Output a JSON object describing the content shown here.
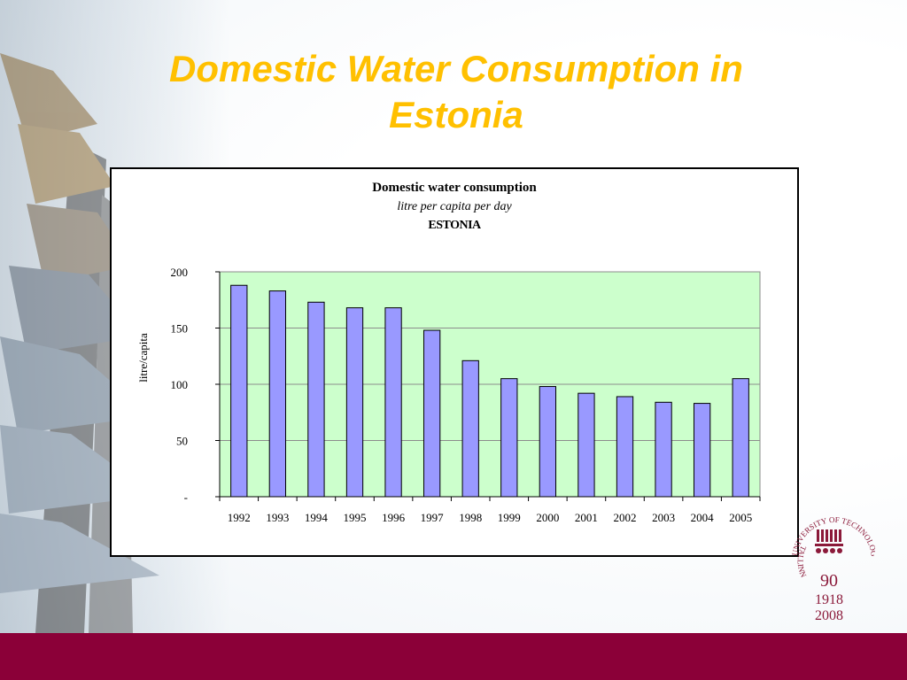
{
  "slide": {
    "title": "Domestic Water Consumption in Estonia"
  },
  "logo": {
    "arc_text": "UNIVERSITY OF TECHNOLOGY",
    "left_text": "TALLINN",
    "number": "90",
    "year_start": "1918",
    "year_end": "2008",
    "color": "#8b1a3a"
  },
  "colors": {
    "title": "#ffc000",
    "plot_bg": "#ccffcc",
    "bar_fill": "#9999ff",
    "footer": "#8b0038"
  },
  "chart_data": {
    "type": "bar",
    "title": "Domestic water consumption",
    "subtitle": "litre per capita per day",
    "subtitle2": "ESTONIA",
    "xlabel": "",
    "ylabel": "litre/capita",
    "categories": [
      "1992",
      "1993",
      "1994",
      "1995",
      "1996",
      "1997",
      "1998",
      "1999",
      "2000",
      "2001",
      "2002",
      "2003",
      "2004",
      "2005"
    ],
    "values": [
      188,
      183,
      173,
      168,
      168,
      148,
      121,
      105,
      98,
      92,
      89,
      84,
      83,
      105
    ],
    "ylim": [
      0,
      200
    ],
    "yticks": [
      0,
      50,
      100,
      150,
      200
    ],
    "ytick_labels": [
      "-",
      "50",
      "100",
      "150",
      "200"
    ],
    "grid": true,
    "legend": "none"
  }
}
